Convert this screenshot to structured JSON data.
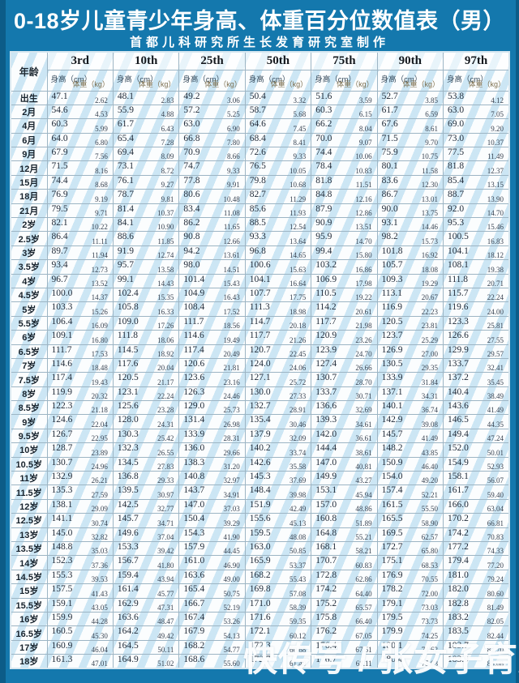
{
  "title": "0-18岁儿童青少年身高、体重百分位数值表（男）",
  "subtitle": "首都儿科研究所生长发育研究室制作",
  "watermark": "快传号 / 张女子育儿经",
  "colors": {
    "page_background": "#1478ad",
    "edge_strip": "#0c5c88",
    "stripe_blue": "#a5d4ec",
    "grid_line": "#9db5c4",
    "title_text": "#ffffff"
  },
  "table": {
    "corner_label": "年龄",
    "percentiles": [
      "3rd",
      "10th",
      "25th",
      "50th",
      "75th",
      "90th",
      "97th"
    ],
    "height_label": "身高（cm）",
    "weight_label": "体重（kg）",
    "rows": [
      {
        "age": "出生",
        "v": [
          "47.1",
          "2.62",
          "48.1",
          "2.83",
          "49.2",
          "3.06",
          "50.4",
          "3.32",
          "51.6",
          "3.59",
          "52.7",
          "3.85",
          "53.8",
          "4.12"
        ]
      },
      {
        "age": "2月",
        "v": [
          "54.6",
          "4.53",
          "55.9",
          "4.88",
          "57.2",
          "5.25",
          "58.7",
          "5.68",
          "60.3",
          "6.15",
          "61.7",
          "6.59",
          "63.0",
          "7.05"
        ]
      },
      {
        "age": "4月",
        "v": [
          "60.3",
          "5.99",
          "61.7",
          "6.43",
          "63.0",
          "6.90",
          "64.6",
          "7.45",
          "66.2",
          "8.04",
          "67.6",
          "8.61",
          "69.0",
          "9.20"
        ]
      },
      {
        "age": "6月",
        "v": [
          "64.0",
          "6.80",
          "65.4",
          "7.28",
          "66.8",
          "7.80",
          "68.4",
          "8.41",
          "70.0",
          "9.07",
          "71.5",
          "9.70",
          "73.0",
          "10.37"
        ]
      },
      {
        "age": "9月",
        "v": [
          "67.9",
          "7.56",
          "69.4",
          "8.09",
          "70.9",
          "8.66",
          "72.6",
          "9.33",
          "74.4",
          "10.06",
          "75.9",
          "10.75",
          "77.5",
          "11.49"
        ]
      },
      {
        "age": "12月",
        "v": [
          "71.5",
          "8.16",
          "73.1",
          "8.72",
          "74.7",
          "9.33",
          "76.5",
          "10.05",
          "78.4",
          "10.83",
          "80.1",
          "11.58",
          "81.8",
          "12.37"
        ]
      },
      {
        "age": "15月",
        "v": [
          "74.4",
          "8.68",
          "76.1",
          "9.27",
          "77.8",
          "9.91",
          "79.8",
          "10.68",
          "81.8",
          "11.51",
          "83.6",
          "12.30",
          "85.4",
          "13.15"
        ]
      },
      {
        "age": "18月",
        "v": [
          "76.9",
          "9.19",
          "78.7",
          "9.81",
          "80.6",
          "10.48",
          "82.7",
          "11.29",
          "84.8",
          "12.16",
          "86.7",
          "13.01",
          "88.7",
          "13.90"
        ]
      },
      {
        "age": "21月",
        "v": [
          "79.5",
          "9.71",
          "81.4",
          "10.37",
          "83.4",
          "11.08",
          "85.6",
          "11.93",
          "87.9",
          "12.86",
          "90.0",
          "13.75",
          "92.0",
          "14.70"
        ]
      },
      {
        "age": "2岁",
        "v": [
          "82.1",
          "10.22",
          "84.1",
          "10.90",
          "86.2",
          "11.65",
          "88.5",
          "12.54",
          "90.9",
          "13.51",
          "93.1",
          "14.46",
          "95.3",
          "15.46"
        ]
      },
      {
        "age": "2.5岁",
        "v": [
          "86.4",
          "11.11",
          "88.6",
          "11.85",
          "90.8",
          "12.66",
          "93.3",
          "13.64",
          "95.9",
          "14.70",
          "98.2",
          "15.73",
          "100.5",
          "16.83"
        ]
      },
      {
        "age": "3岁",
        "v": [
          "89.7",
          "11.94",
          "91.9",
          "12.74",
          "94.2",
          "13.61",
          "96.8",
          "14.65",
          "99.4",
          "15.80",
          "101.8",
          "16.92",
          "104.1",
          "18.12"
        ]
      },
      {
        "age": "3.5岁",
        "v": [
          "93.4",
          "12.73",
          "95.7",
          "13.58",
          "98.0",
          "14.51",
          "100.6",
          "15.63",
          "103.2",
          "16.86",
          "105.7",
          "18.08",
          "108.1",
          "19.38"
        ]
      },
      {
        "age": "4岁",
        "v": [
          "96.7",
          "13.52",
          "99.1",
          "14.43",
          "101.4",
          "15.43",
          "104.1",
          "16.64",
          "106.9",
          "17.98",
          "109.3",
          "19.29",
          "111.8",
          "20.71"
        ]
      },
      {
        "age": "4.5岁",
        "v": [
          "100.0",
          "14.37",
          "102.4",
          "15.35",
          "104.9",
          "16.43",
          "107.7",
          "17.75",
          "110.5",
          "19.22",
          "113.1",
          "20.67",
          "115.7",
          "22.24"
        ]
      },
      {
        "age": "5岁",
        "v": [
          "103.3",
          "15.26",
          "105.8",
          "16.33",
          "108.4",
          "17.52",
          "111.3",
          "18.98",
          "114.2",
          "20.61",
          "116.9",
          "22.23",
          "119.6",
          "24.00"
        ]
      },
      {
        "age": "5.5岁",
        "v": [
          "106.4",
          "16.09",
          "109.0",
          "17.26",
          "111.7",
          "18.56",
          "114.7",
          "20.18",
          "117.7",
          "21.98",
          "120.5",
          "23.81",
          "123.3",
          "25.81"
        ]
      },
      {
        "age": "6岁",
        "v": [
          "109.1",
          "16.80",
          "111.8",
          "18.06",
          "114.6",
          "19.49",
          "117.7",
          "21.26",
          "120.9",
          "23.26",
          "123.7",
          "25.29",
          "126.6",
          "27.55"
        ]
      },
      {
        "age": "6.5岁",
        "v": [
          "111.7",
          "17.53",
          "114.5",
          "18.92",
          "117.4",
          "20.49",
          "120.7",
          "22.45",
          "123.9",
          "24.70",
          "126.9",
          "27.00",
          "129.9",
          "29.57"
        ]
      },
      {
        "age": "7岁",
        "v": [
          "114.6",
          "18.48",
          "117.6",
          "20.04",
          "120.6",
          "21.81",
          "124.0",
          "24.06",
          "127.4",
          "26.66",
          "130.5",
          "29.35",
          "133.7",
          "32.41"
        ]
      },
      {
        "age": "7.5岁",
        "v": [
          "117.4",
          "19.43",
          "120.5",
          "21.17",
          "123.6",
          "23.16",
          "127.1",
          "25.72",
          "130.7",
          "28.70",
          "133.9",
          "31.84",
          "137.2",
          "35.45"
        ]
      },
      {
        "age": "8岁",
        "v": [
          "119.9",
          "20.32",
          "123.1",
          "22.24",
          "126.3",
          "24.46",
          "130.0",
          "27.33",
          "133.7",
          "30.71",
          "137.1",
          "34.31",
          "140.4",
          "38.49"
        ]
      },
      {
        "age": "8.5岁",
        "v": [
          "122.3",
          "21.18",
          "125.6",
          "23.28",
          "129.0",
          "25.73",
          "132.7",
          "28.91",
          "136.6",
          "32.69",
          "140.1",
          "36.74",
          "143.6",
          "41.49"
        ]
      },
      {
        "age": "9岁",
        "v": [
          "124.6",
          "22.04",
          "128.0",
          "24.31",
          "131.4",
          "26.98",
          "135.4",
          "30.46",
          "139.3",
          "34.61",
          "142.9",
          "39.08",
          "146.5",
          "44.35"
        ]
      },
      {
        "age": "9.5岁",
        "v": [
          "126.7",
          "22.95",
          "130.3",
          "25.42",
          "133.9",
          "28.31",
          "137.9",
          "32.09",
          "142.0",
          "36.61",
          "145.7",
          "41.49",
          "149.4",
          "47.24"
        ]
      },
      {
        "age": "10岁",
        "v": [
          "128.7",
          "23.89",
          "132.3",
          "26.55",
          "136.0",
          "29.66",
          "140.2",
          "33.74",
          "144.4",
          "38.61",
          "148.2",
          "43.85",
          "152.0",
          "50.01"
        ]
      },
      {
        "age": "10.5岁",
        "v": [
          "130.7",
          "24.96",
          "134.5",
          "27.83",
          "138.3",
          "31.20",
          "142.6",
          "35.58",
          "147.0",
          "40.81",
          "150.9",
          "46.40",
          "154.9",
          "52.93"
        ]
      },
      {
        "age": "11岁",
        "v": [
          "132.9",
          "26.21",
          "136.8",
          "29.33",
          "140.8",
          "32.97",
          "145.3",
          "37.69",
          "149.9",
          "43.27",
          "154.0",
          "49.20",
          "158.1",
          "56.07"
        ]
      },
      {
        "age": "11.5岁",
        "v": [
          "135.3",
          "27.59",
          "139.5",
          "30.97",
          "143.7",
          "34.91",
          "148.4",
          "39.98",
          "153.1",
          "45.94",
          "157.4",
          "52.21",
          "161.7",
          "59.40"
        ]
      },
      {
        "age": "12岁",
        "v": [
          "138.1",
          "29.09",
          "142.5",
          "32.77",
          "147.0",
          "37.03",
          "151.9",
          "42.49",
          "157.0",
          "48.86",
          "161.5",
          "55.50",
          "166.0",
          "63.04"
        ]
      },
      {
        "age": "12.5岁",
        "v": [
          "141.1",
          "30.74",
          "145.7",
          "34.71",
          "150.4",
          "39.29",
          "155.6",
          "45.13",
          "160.8",
          "51.89",
          "165.5",
          "58.90",
          "170.2",
          "66.81"
        ]
      },
      {
        "age": "13岁",
        "v": [
          "145.0",
          "32.82",
          "149.6",
          "37.04",
          "154.3",
          "41.90",
          "159.5",
          "48.08",
          "164.8",
          "55.21",
          "169.5",
          "62.57",
          "174.2",
          "70.83"
        ]
      },
      {
        "age": "13.5岁",
        "v": [
          "148.8",
          "35.03",
          "153.3",
          "39.42",
          "157.9",
          "44.45",
          "163.0",
          "50.85",
          "168.1",
          "58.21",
          "172.7",
          "65.80",
          "177.2",
          "74.33"
        ]
      },
      {
        "age": "14岁",
        "v": [
          "152.3",
          "37.36",
          "156.7",
          "41.80",
          "161.0",
          "46.90",
          "165.9",
          "53.37",
          "170.7",
          "60.83",
          "175.1",
          "68.53",
          "179.4",
          "77.20"
        ]
      },
      {
        "age": "14.5岁",
        "v": [
          "155.3",
          "39.53",
          "159.4",
          "43.94",
          "163.6",
          "49.00",
          "168.2",
          "55.43",
          "172.8",
          "62.86",
          "176.9",
          "70.55",
          "181.0",
          "79.24"
        ]
      },
      {
        "age": "15岁",
        "v": [
          "157.5",
          "41.43",
          "161.4",
          "45.77",
          "165.4",
          "50.75",
          "169.8",
          "57.08",
          "174.2",
          "64.40",
          "178.2",
          "72.00",
          "182.0",
          "80.60"
        ]
      },
      {
        "age": "15.5岁",
        "v": [
          "159.1",
          "43.05",
          "162.9",
          "47.31",
          "166.7",
          "52.19",
          "171.0",
          "58.39",
          "175.2",
          "65.57",
          "179.1",
          "73.03",
          "182.8",
          "81.49"
        ]
      },
      {
        "age": "16岁",
        "v": [
          "159.9",
          "44.28",
          "163.6",
          "48.47",
          "167.4",
          "53.26",
          "171.6",
          "59.35",
          "175.8",
          "66.40",
          "179.5",
          "73.73",
          "183.2",
          "82.05"
        ]
      },
      {
        "age": "16.5岁",
        "v": [
          "160.5",
          "45.30",
          "164.2",
          "49.42",
          "167.9",
          "54.13",
          "172.1",
          "60.12",
          "176.2",
          "67.05",
          "179.9",
          "74.25",
          "183.5",
          "82.44"
        ]
      },
      {
        "age": "17岁",
        "v": [
          "160.9",
          "46.04",
          "164.5",
          "50.11",
          "168.2",
          "54.77",
          "172.3",
          "60.68",
          "176.4",
          "67.51",
          "180.1",
          "74.62",
          "183.7",
          "82.70"
        ]
      },
      {
        "age": "18岁",
        "v": [
          "161.3",
          "47.01",
          "164.9",
          "51.02",
          "168.6",
          "55.60",
          "172.7",
          "61.40",
          "176.7",
          "68.11",
          "180.4",
          "75.08",
          "183.9",
          "83.08"
        ]
      }
    ]
  }
}
